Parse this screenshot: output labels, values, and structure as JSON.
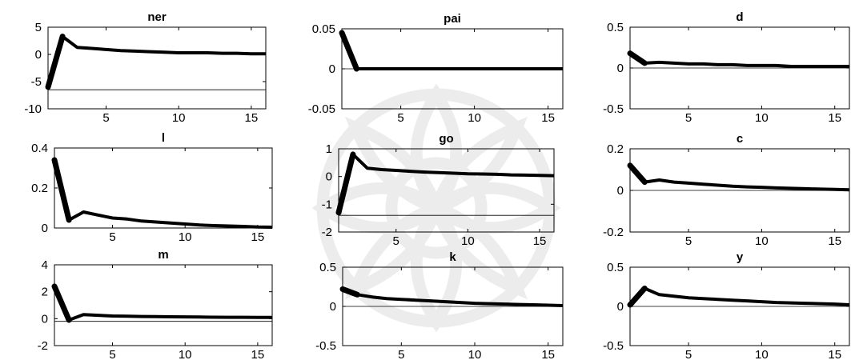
{
  "watermark": {
    "icon": "ornamental-rosette-icon",
    "color": "#8c8c8c"
  },
  "chart_data": [
    {
      "type": "line",
      "title": "ner",
      "x": [
        1,
        2,
        3,
        4,
        5,
        6,
        7,
        8,
        9,
        10,
        11,
        12,
        13,
        14,
        15,
        16
      ],
      "values": [
        -6,
        3.3,
        1.3,
        1.1,
        0.9,
        0.7,
        0.6,
        0.5,
        0.4,
        0.3,
        0.3,
        0.3,
        0.2,
        0.2,
        0.1,
        0.1
      ],
      "ylim": [
        -10,
        5
      ],
      "yticks": [
        "5",
        "0",
        "-5",
        "-10"
      ],
      "ytick_values": [
        5,
        0,
        -5,
        -10
      ],
      "xlim": [
        1,
        16
      ],
      "xticks": [
        "5",
        "10",
        "15"
      ],
      "xtick_values": [
        5,
        10,
        15
      ],
      "hline": -6.5
    },
    {
      "type": "line",
      "title": "pai",
      "x": [
        1,
        2,
        3,
        4,
        5,
        6,
        7,
        8,
        9,
        10,
        11,
        12,
        13,
        14,
        15,
        16
      ],
      "values": [
        0.045,
        0,
        0,
        0,
        0,
        0,
        0,
        0,
        0,
        0,
        0,
        0,
        0,
        0,
        0,
        0
      ],
      "ylim": [
        -0.05,
        0.05
      ],
      "yticks": [
        "0.05",
        "0",
        "-0.05"
      ],
      "ytick_values": [
        0.05,
        0,
        -0.05
      ],
      "xlim": [
        1,
        16
      ],
      "xticks": [
        "5",
        "10",
        "15"
      ],
      "xtick_values": [
        5,
        10,
        15
      ],
      "hline": 0
    },
    {
      "type": "line",
      "title": "d",
      "x": [
        1,
        2,
        3,
        4,
        5,
        6,
        7,
        8,
        9,
        10,
        11,
        12,
        13,
        14,
        15,
        16
      ],
      "values": [
        0.18,
        0.06,
        0.07,
        0.06,
        0.05,
        0.05,
        0.04,
        0.04,
        0.03,
        0.03,
        0.03,
        0.02,
        0.02,
        0.02,
        0.02,
        0.02
      ],
      "ylim": [
        -0.5,
        0.5
      ],
      "yticks": [
        "0.5",
        "0",
        "-0.5"
      ],
      "ytick_values": [
        0.5,
        0,
        -0.5
      ],
      "xlim": [
        1,
        16
      ],
      "xticks": [
        "5",
        "10",
        "15"
      ],
      "xtick_values": [
        5,
        10,
        15
      ],
      "hline": 0
    },
    {
      "type": "line",
      "title": "l",
      "x": [
        1,
        2,
        3,
        4,
        5,
        6,
        7,
        8,
        9,
        10,
        11,
        12,
        13,
        14,
        15,
        16
      ],
      "values": [
        0.34,
        0.04,
        0.08,
        0.065,
        0.05,
        0.045,
        0.035,
        0.03,
        0.025,
        0.02,
        0.015,
        0.012,
        0.01,
        0.008,
        0.005,
        0.004
      ],
      "ylim": [
        0,
        0.4
      ],
      "yticks": [
        "0.4",
        "0.2",
        "0"
      ],
      "ytick_values": [
        0.4,
        0.2,
        0
      ],
      "xlim": [
        1,
        16
      ],
      "xticks": [
        "5",
        "10",
        "15"
      ],
      "xtick_values": [
        5,
        10,
        15
      ],
      "hline": 0
    },
    {
      "type": "line",
      "title": "go",
      "x": [
        1,
        2,
        3,
        4,
        5,
        6,
        7,
        8,
        9,
        10,
        11,
        12,
        13,
        14,
        15,
        16
      ],
      "values": [
        -1.3,
        0.8,
        0.3,
        0.25,
        0.22,
        0.19,
        0.16,
        0.14,
        0.12,
        0.1,
        0.09,
        0.08,
        0.06,
        0.05,
        0.04,
        0.03
      ],
      "ylim": [
        -2,
        1
      ],
      "yticks": [
        "1",
        "0",
        "-1",
        "-2"
      ],
      "ytick_values": [
        1,
        0,
        -1,
        -2
      ],
      "xlim": [
        1,
        16
      ],
      "xticks": [
        "5",
        "10",
        "15"
      ],
      "xtick_values": [
        5,
        10,
        15
      ],
      "hline": -1.4
    },
    {
      "type": "line",
      "title": "c",
      "x": [
        1,
        2,
        3,
        4,
        5,
        6,
        7,
        8,
        9,
        10,
        11,
        12,
        13,
        14,
        15,
        16
      ],
      "values": [
        0.12,
        0.04,
        0.05,
        0.04,
        0.035,
        0.03,
        0.025,
        0.02,
        0.017,
        0.015,
        0.012,
        0.01,
        0.008,
        0.006,
        0.005,
        0.003
      ],
      "ylim": [
        -0.2,
        0.2
      ],
      "yticks": [
        "0.2",
        "0",
        "-0.2"
      ],
      "ytick_values": [
        0.2,
        0,
        -0.2
      ],
      "xlim": [
        1,
        16
      ],
      "xticks": [
        "5",
        "10",
        "15"
      ],
      "xtick_values": [
        5,
        10,
        15
      ],
      "hline": 0
    },
    {
      "type": "line",
      "title": "m",
      "x": [
        1,
        2,
        3,
        4,
        5,
        6,
        7,
        8,
        9,
        10,
        11,
        12,
        13,
        14,
        15,
        16
      ],
      "values": [
        2.4,
        -0.1,
        0.3,
        0.25,
        0.2,
        0.18,
        0.16,
        0.15,
        0.14,
        0.13,
        0.12,
        0.11,
        0.1,
        0.1,
        0.09,
        0.09
      ],
      "ylim": [
        -2,
        4
      ],
      "yticks": [
        "4",
        "2",
        "0",
        "-2"
      ],
      "ytick_values": [
        4,
        2,
        0,
        -2
      ],
      "xlim": [
        1,
        16
      ],
      "xticks": [
        "5",
        "10",
        "15"
      ],
      "xtick_values": [
        5,
        10,
        15
      ],
      "hline": -0.2
    },
    {
      "type": "line",
      "title": "k",
      "x": [
        1,
        2,
        3,
        4,
        5,
        6,
        7,
        8,
        9,
        10,
        11,
        12,
        13,
        14,
        15,
        16
      ],
      "values": [
        0.22,
        0.15,
        0.12,
        0.1,
        0.09,
        0.08,
        0.07,
        0.06,
        0.05,
        0.04,
        0.035,
        0.03,
        0.025,
        0.02,
        0.015,
        0.01
      ],
      "ylim": [
        -0.5,
        0.5
      ],
      "yticks": [
        "0.5",
        "0",
        "-0.5"
      ],
      "ytick_values": [
        0.5,
        0,
        -0.5
      ],
      "xlim": [
        1,
        16
      ],
      "xticks": [
        "5",
        "10",
        "15"
      ],
      "xtick_values": [
        5,
        10,
        15
      ],
      "hline": 0
    },
    {
      "type": "line",
      "title": "y",
      "x": [
        1,
        2,
        3,
        4,
        5,
        6,
        7,
        8,
        9,
        10,
        11,
        12,
        13,
        14,
        15,
        16
      ],
      "values": [
        0.02,
        0.23,
        0.15,
        0.13,
        0.11,
        0.1,
        0.09,
        0.08,
        0.07,
        0.06,
        0.05,
        0.045,
        0.04,
        0.035,
        0.03,
        0.02
      ],
      "ylim": [
        -0.5,
        0.5
      ],
      "yticks": [
        "0.5",
        "0",
        "-0.5"
      ],
      "ytick_values": [
        0.5,
        0,
        -0.5
      ],
      "xlim": [
        1,
        16
      ],
      "xticks": [
        "5",
        "10",
        "15"
      ],
      "xtick_values": [
        5,
        10,
        15
      ],
      "hline": 0
    }
  ]
}
